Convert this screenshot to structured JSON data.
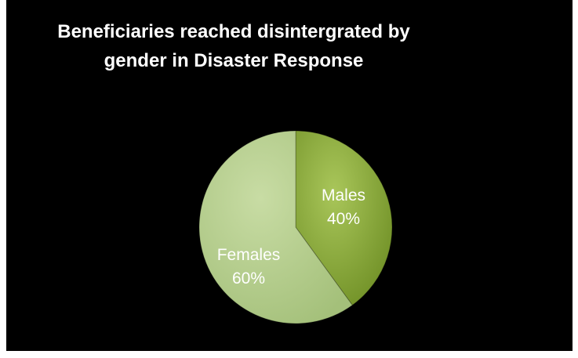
{
  "chart_data": {
    "type": "pie",
    "title": "Beneficiaries reached disintergrated by\ngender in Disaster Response",
    "categories": [
      "Males",
      "Females"
    ],
    "values": [
      40,
      60
    ],
    "value_labels": [
      "40%",
      "60%"
    ],
    "colors": [
      "#8aac3c",
      "#b7cf8d"
    ],
    "background": "#000000",
    "legend": "none",
    "start_angle_deg": 0
  }
}
